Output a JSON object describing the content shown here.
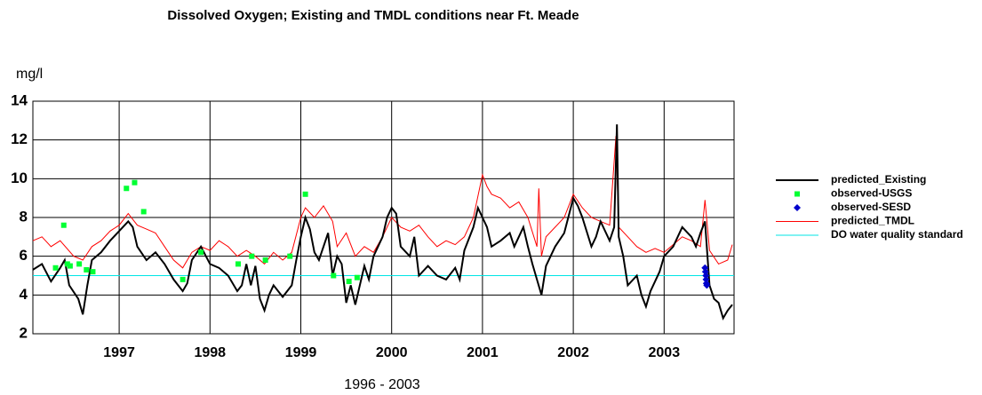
{
  "chart_data": {
    "type": "line",
    "title": "Dissolved Oxygen; Existing and TMDL conditions near Ft. Meade",
    "ylabel": "mg/l",
    "xlabel": "1996 - 2003",
    "xlim": [
      1996.05,
      2003.77
    ],
    "xticks": [
      1997,
      1998,
      1999,
      2000,
      2001,
      2002,
      2003
    ],
    "ylim": [
      2,
      14
    ],
    "yticks": [
      2,
      4,
      6,
      8,
      10,
      12,
      14
    ],
    "grid": true,
    "legend": "right",
    "series": [
      {
        "name": "predicted_Existing",
        "color": "#000000",
        "style": "line",
        "x": [
          1996.05,
          1996.15,
          1996.25,
          1996.35,
          1996.4,
          1996.45,
          1996.55,
          1996.6,
          1996.65,
          1996.7,
          1996.8,
          1996.9,
          1997.0,
          1997.1,
          1997.15,
          1997.2,
          1997.3,
          1997.4,
          1997.5,
          1997.6,
          1997.7,
          1997.75,
          1997.8,
          1997.9,
          1998.0,
          1998.1,
          1998.2,
          1998.3,
          1998.35,
          1998.4,
          1998.45,
          1998.5,
          1998.55,
          1998.6,
          1998.65,
          1998.7,
          1998.8,
          1998.9,
          1998.95,
          1999.0,
          1999.05,
          1999.1,
          1999.15,
          1999.2,
          1999.3,
          1999.35,
          1999.4,
          1999.45,
          1999.5,
          1999.55,
          1999.6,
          1999.65,
          1999.7,
          1999.75,
          1999.8,
          1999.85,
          1999.9,
          1999.95,
          2000.0,
          2000.05,
          2000.1,
          2000.2,
          2000.25,
          2000.3,
          2000.4,
          2000.5,
          2000.6,
          2000.7,
          2000.75,
          2000.8,
          2000.9,
          2000.95,
          2001.0,
          2001.05,
          2001.1,
          2001.2,
          2001.3,
          2001.35,
          2001.45,
          2001.5,
          2001.55,
          2001.6,
          2001.65,
          2001.7,
          2001.8,
          2001.9,
          2002.0,
          2002.05,
          2002.1,
          2002.2,
          2002.25,
          2002.3,
          2002.4,
          2002.45,
          2002.48,
          2002.5,
          2002.55,
          2002.6,
          2002.7,
          2002.75,
          2002.8,
          2002.85,
          2002.95,
          2003.0,
          2003.1,
          2003.2,
          2003.3,
          2003.35,
          2003.4,
          2003.45,
          2003.5,
          2003.55,
          2003.6,
          2003.65,
          2003.7,
          2003.75
        ],
        "values": [
          5.3,
          5.6,
          4.7,
          5.4,
          5.8,
          4.5,
          3.8,
          3.0,
          4.5,
          5.8,
          6.2,
          6.8,
          7.3,
          7.8,
          7.5,
          6.5,
          5.8,
          6.2,
          5.6,
          4.8,
          4.2,
          4.6,
          5.8,
          6.5,
          5.6,
          5.4,
          5.0,
          4.2,
          4.5,
          5.6,
          4.5,
          5.5,
          3.8,
          3.2,
          4.0,
          4.5,
          3.9,
          4.5,
          5.8,
          7.0,
          8.0,
          7.4,
          6.2,
          5.8,
          7.2,
          5.0,
          6.0,
          5.6,
          3.6,
          4.5,
          3.5,
          4.5,
          5.5,
          4.8,
          6.0,
          6.5,
          7.0,
          8.0,
          8.5,
          8.2,
          6.5,
          6.0,
          7.0,
          5.0,
          5.5,
          5.0,
          4.8,
          5.4,
          4.8,
          6.3,
          7.5,
          8.5,
          8.0,
          7.5,
          6.5,
          6.8,
          7.2,
          6.5,
          7.5,
          6.5,
          5.6,
          4.8,
          4.0,
          5.5,
          6.5,
          7.2,
          9.0,
          8.6,
          8.0,
          6.5,
          7.0,
          7.8,
          6.8,
          7.5,
          12.8,
          7.0,
          6.0,
          4.5,
          5.0,
          4.0,
          3.4,
          4.2,
          5.2,
          6.0,
          6.5,
          7.5,
          7.0,
          6.5,
          7.2,
          7.8,
          4.5,
          3.8,
          3.6,
          2.8,
          3.2,
          3.5
        ]
      },
      {
        "name": "observed-USGS",
        "color": "#00ff33",
        "style": "square",
        "x": [
          1996.3,
          1996.39,
          1996.43,
          1996.46,
          1996.56,
          1996.64,
          1996.71,
          1997.08,
          1997.17,
          1997.27,
          1997.7,
          1997.9,
          1998.31,
          1998.46,
          1998.61,
          1998.88,
          1999.05,
          1999.36,
          1999.53,
          1999.62
        ],
        "values": [
          5.4,
          7.6,
          5.6,
          5.5,
          5.6,
          5.3,
          5.2,
          9.5,
          9.8,
          8.3,
          4.8,
          6.2,
          5.6,
          6.0,
          5.8,
          6.0,
          9.2,
          5.0,
          4.7,
          4.9
        ]
      },
      {
        "name": "observed-SESD",
        "color": "#0000cc",
        "style": "diamond",
        "x": [
          2003.45,
          2003.455,
          2003.46,
          2003.462,
          2003.465,
          2003.47
        ],
        "values": [
          5.4,
          5.2,
          5.0,
          4.8,
          4.6,
          4.5
        ]
      },
      {
        "name": "predicted_TMDL",
        "color": "#ff0000",
        "style": "line",
        "x": [
          1996.05,
          1996.15,
          1996.25,
          1996.35,
          1996.5,
          1996.6,
          1996.7,
          1996.8,
          1996.9,
          1997.0,
          1997.1,
          1997.2,
          1997.3,
          1997.4,
          1997.5,
          1997.6,
          1997.7,
          1997.8,
          1997.9,
          1998.0,
          1998.1,
          1998.2,
          1998.3,
          1998.4,
          1998.5,
          1998.6,
          1998.7,
          1998.8,
          1998.9,
          1999.0,
          1999.05,
          1999.15,
          1999.25,
          1999.35,
          1999.4,
          1999.5,
          1999.6,
          1999.7,
          1999.8,
          1999.9,
          2000.0,
          2000.1,
          2000.2,
          2000.3,
          2000.4,
          2000.5,
          2000.6,
          2000.7,
          2000.8,
          2000.9,
          2001.0,
          2001.05,
          2001.1,
          2001.2,
          2001.3,
          2001.4,
          2001.5,
          2001.6,
          2001.62,
          2001.65,
          2001.7,
          2001.8,
          2001.9,
          2002.0,
          2002.1,
          2002.2,
          2002.3,
          2002.4,
          2002.47,
          2002.5,
          2002.6,
          2002.7,
          2002.8,
          2002.9,
          2003.0,
          2003.1,
          2003.2,
          2003.3,
          2003.4,
          2003.45,
          2003.5,
          2003.6,
          2003.7,
          2003.75
        ],
        "values": [
          6.8,
          7.0,
          6.5,
          6.8,
          6.0,
          5.8,
          6.5,
          6.8,
          7.3,
          7.6,
          8.2,
          7.6,
          7.4,
          7.2,
          6.5,
          5.8,
          5.4,
          6.2,
          6.5,
          6.3,
          6.8,
          6.5,
          6.0,
          6.3,
          6.0,
          5.6,
          6.2,
          5.8,
          6.2,
          8.0,
          8.5,
          8.0,
          8.6,
          7.8,
          6.5,
          7.2,
          6.0,
          6.5,
          6.2,
          7.0,
          8.0,
          7.5,
          7.3,
          7.6,
          7.0,
          6.5,
          6.8,
          6.6,
          7.0,
          8.0,
          10.2,
          9.6,
          9.2,
          9.0,
          8.5,
          8.8,
          8.0,
          6.5,
          9.5,
          6.0,
          7.0,
          7.5,
          8.0,
          9.2,
          8.5,
          8.0,
          7.8,
          7.6,
          12.2,
          7.5,
          7.0,
          6.5,
          6.2,
          6.4,
          6.2,
          6.6,
          7.0,
          6.8,
          6.5,
          8.9,
          6.3,
          5.6,
          5.8,
          6.6
        ]
      },
      {
        "name": "DO water quality standard",
        "color": "#00e5e5",
        "style": "line",
        "x": [
          1996.05,
          2003.77
        ],
        "values": [
          5,
          5
        ]
      }
    ]
  }
}
